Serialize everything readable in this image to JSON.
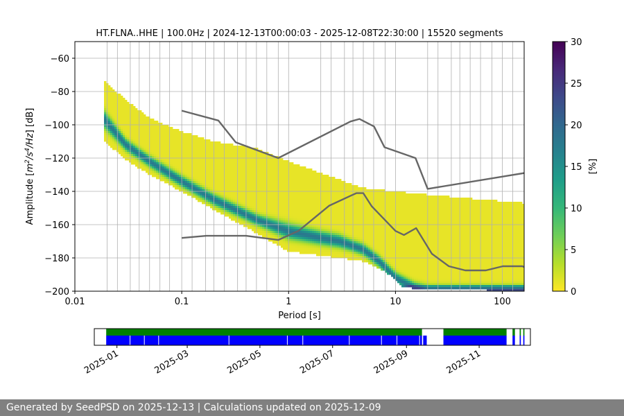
{
  "chart_data": [
    {
      "type": "heatmap",
      "title": "HT.FLNA..HHE | 100.0Hz | 2024-12-13T00:00:03 - 2025-12-08T22:30:00 | 15520 segments",
      "xlabel": "Period [s]",
      "ylabel_parts": [
        "Amplitude [",
        "m",
        "2",
        "/",
        "s",
        "4",
        "/",
        "Hz",
        "] [dB]"
      ],
      "xscale": "log",
      "xlim": [
        0.01,
        160
      ],
      "ylim": [
        -200,
        -50
      ],
      "xticks": [
        {
          "value": 0.01,
          "label": "0.01"
        },
        {
          "value": 0.1,
          "label": "0.1"
        },
        {
          "value": 1,
          "label": "1"
        },
        {
          "value": 10,
          "label": "10"
        },
        {
          "value": 100,
          "label": "100"
        }
      ],
      "yticks": [
        -60,
        -80,
        -100,
        -120,
        -140,
        -160,
        -180,
        -200
      ],
      "ytick_labels": [
        "−60",
        "−80",
        "−100",
        "−120",
        "−140",
        "−160",
        "−180",
        "−200"
      ],
      "grid_periods": [
        0.02,
        0.025,
        0.033,
        0.04,
        0.05,
        0.0625,
        0.077,
        0.1,
        0.125,
        0.167,
        0.2,
        0.25,
        0.333,
        0.4,
        0.5,
        0.625,
        0.8,
        1,
        2,
        2.5,
        3.33,
        4,
        5,
        6.25,
        8,
        10,
        20,
        25,
        33.3,
        40,
        50,
        62.5,
        80,
        100,
        125
      ],
      "colorbar": {
        "label": "[%]",
        "min": 0,
        "max": 30,
        "ticks": [
          0,
          5,
          10,
          15,
          20,
          25,
          30
        ],
        "colormap": [
          "#fde725",
          "#b5de2b",
          "#6ece58",
          "#35b779",
          "#1f9e89",
          "#26828e",
          "#31688e",
          "#3e4989",
          "#482878",
          "#440154"
        ]
      },
      "psd_mode": [
        [
          0.019,
          -97
        ],
        [
          0.03,
          -112
        ],
        [
          0.05,
          -122
        ],
        [
          0.1,
          -134
        ],
        [
          0.2,
          -145
        ],
        [
          0.5,
          -157
        ],
        [
          1,
          -164
        ],
        [
          2,
          -168
        ],
        [
          3,
          -170
        ],
        [
          5,
          -175
        ],
        [
          7,
          -182
        ],
        [
          10,
          -192
        ],
        [
          15,
          -198
        ],
        [
          20,
          -200
        ],
        [
          160,
          -200
        ]
      ],
      "psd_band": {
        "upper": [
          [
            0.019,
            -74
          ],
          [
            0.03,
            -85
          ],
          [
            0.05,
            -96
          ],
          [
            0.1,
            -104
          ],
          [
            0.2,
            -110
          ],
          [
            0.5,
            -114
          ],
          [
            1,
            -122
          ],
          [
            2,
            -129
          ],
          [
            5,
            -138
          ],
          [
            10,
            -140
          ],
          [
            30,
            -143
          ],
          [
            160,
            -147
          ]
        ],
        "lower": [
          [
            0.019,
            -110
          ],
          [
            0.03,
            -121
          ],
          [
            0.05,
            -130
          ],
          [
            0.1,
            -140
          ],
          [
            0.2,
            -151
          ],
          [
            0.5,
            -165
          ],
          [
            1,
            -176
          ],
          [
            3,
            -180
          ],
          [
            5,
            -182
          ],
          [
            8,
            -188
          ],
          [
            12,
            -198
          ],
          [
            160,
            -200
          ]
        ]
      },
      "noise_models": [
        {
          "name": "NHNM",
          "points": [
            [
              0.1,
              -91.5
            ],
            [
              0.22,
              -97.4
            ],
            [
              0.32,
              -110.5
            ],
            [
              0.8,
              -120
            ],
            [
              3.8,
              -98
            ],
            [
              4.6,
              -96.5
            ],
            [
              6.3,
              -101
            ],
            [
              7.9,
              -113.5
            ],
            [
              15.4,
              -120
            ],
            [
              20,
              -138.5
            ],
            [
              160,
              -129
            ]
          ]
        },
        {
          "name": "NLNM",
          "points": [
            [
              0.1,
              -168
            ],
            [
              0.17,
              -166.7
            ],
            [
              0.4,
              -166.7
            ],
            [
              0.8,
              -169.2
            ],
            [
              1.24,
              -163.7
            ],
            [
              2.4,
              -148.6
            ],
            [
              4.3,
              -141.1
            ],
            [
              5.0,
              -141.1
            ],
            [
              6.0,
              -149
            ],
            [
              10,
              -163.8
            ],
            [
              12,
              -166.2
            ],
            [
              15.6,
              -162.1
            ],
            [
              21.9,
              -177.5
            ],
            [
              31.6,
              -185
            ],
            [
              45,
              -187.5
            ],
            [
              70,
              -187.5
            ],
            [
              101,
              -185
            ],
            [
              154,
              -185
            ],
            [
              160,
              -185.5
            ]
          ]
        }
      ]
    },
    {
      "type": "timeline",
      "xlim": [
        "2024-12-13",
        "2025-12-14"
      ],
      "xticks": [
        "2025-01",
        "2025-03",
        "2025-05",
        "2025-07",
        "2025-09",
        "2025-11"
      ],
      "colors": {
        "data": "#0000ff",
        "processed": "#008000"
      },
      "data_spans": [
        [
          "2024-12-23",
          "2025-09-14"
        ],
        [
          "2025-09-15",
          "2025-09-18"
        ],
        [
          "2025-10-02",
          "2025-11-24"
        ],
        [
          "2025-11-29",
          "2025-12-01"
        ],
        [
          "2025-12-05",
          "2025-12-06"
        ],
        [
          "2025-12-08",
          "2025-12-09"
        ]
      ],
      "processed_spans": [
        [
          "2024-12-23",
          "2025-09-14"
        ],
        [
          "2025-10-02",
          "2025-11-24"
        ],
        [
          "2025-11-29",
          "2025-12-01"
        ],
        [
          "2025-12-05",
          "2025-12-06"
        ],
        [
          "2025-12-08",
          "2025-12-09"
        ]
      ],
      "gap_marks": [
        "2025-01-12",
        "2025-01-24",
        "2025-02-05",
        "2025-04-05",
        "2025-05-24",
        "2025-06-06",
        "2025-07-15",
        "2025-08-11",
        "2025-08-24",
        "2025-09-12"
      ]
    }
  ],
  "footer": {
    "text": "Generated by SeedPSD on 2025-12-13 | Calculations updated on 2025-12-09"
  }
}
